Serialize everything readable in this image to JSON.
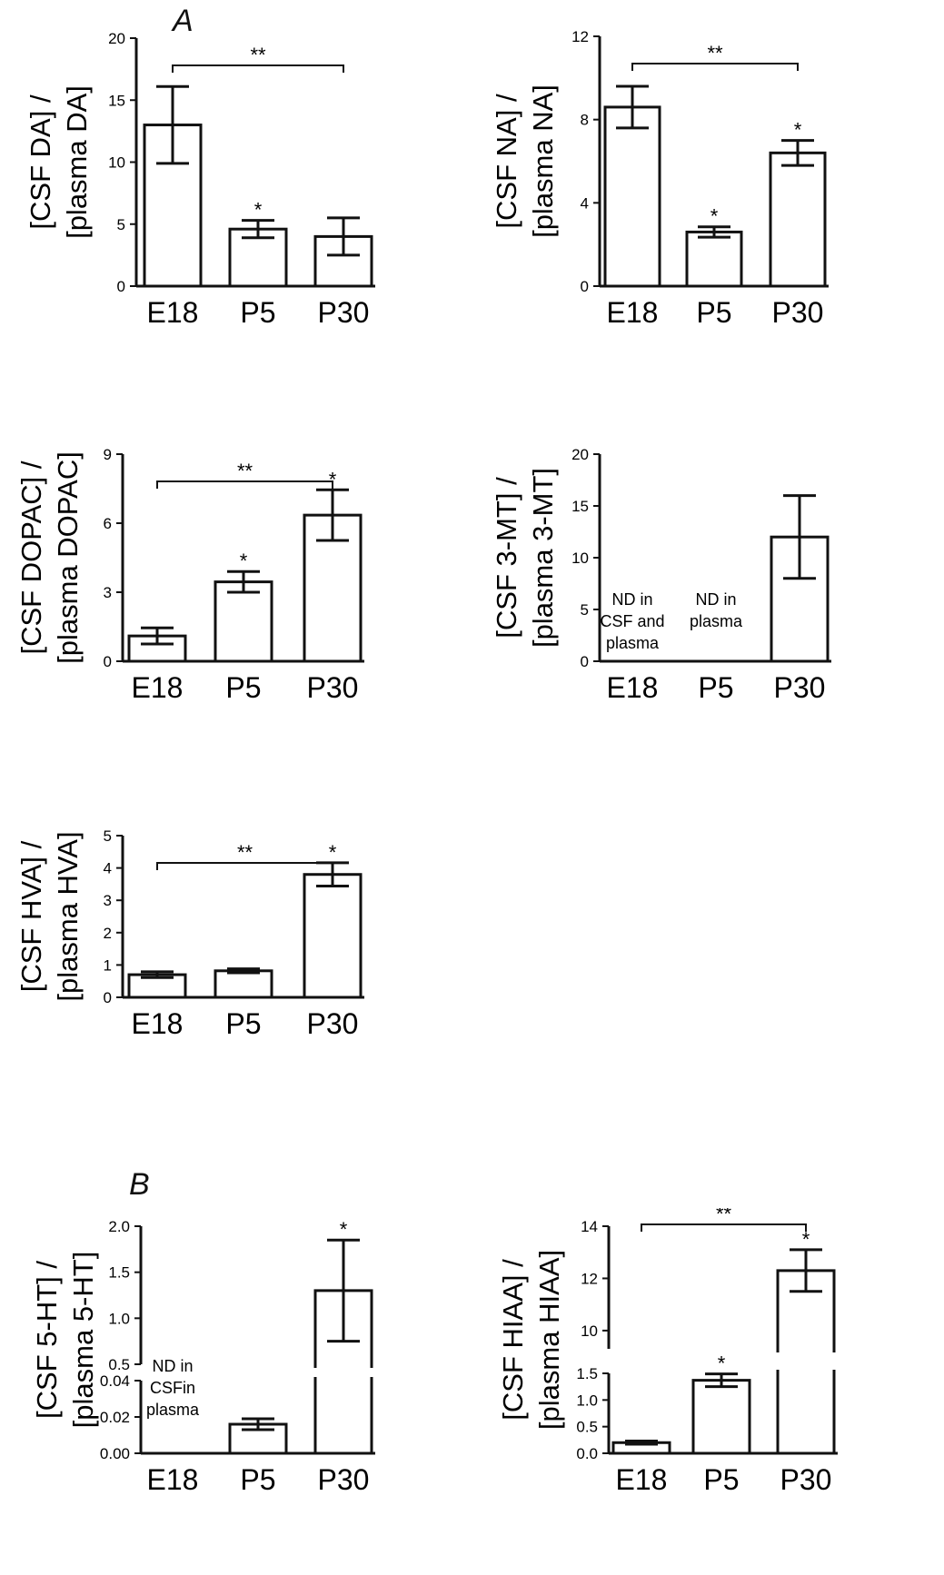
{
  "section_labels": {
    "A": "A",
    "B": "B"
  },
  "chart_data": [
    {
      "type": "bar",
      "ylabel_lines": [
        "[CSF DA] /",
        "[plasma DA]"
      ],
      "categories": [
        "E18",
        "P5",
        "P30"
      ],
      "values": [
        13,
        4.6,
        4.0
      ],
      "errors": [
        3.1,
        0.7,
        1.5
      ],
      "ylim": [
        0,
        20
      ],
      "yticks": [
        "0",
        "5",
        "10",
        "15",
        "20"
      ],
      "ytick_values": [
        0,
        5,
        10,
        15,
        20
      ],
      "sig_marks": [
        "",
        "*",
        ""
      ],
      "bracket": {
        "from": 0,
        "to": 2,
        "label": "**"
      }
    },
    {
      "type": "bar",
      "ylabel_lines": [
        "[CSF NA] /",
        "[plasma NA]"
      ],
      "categories": [
        "E18",
        "P5",
        "P30"
      ],
      "values": [
        8.6,
        2.6,
        6.4
      ],
      "errors": [
        1.0,
        0.25,
        0.6
      ],
      "ylim": [
        0,
        12
      ],
      "yticks": [
        "0",
        "4",
        "8",
        "12"
      ],
      "ytick_values": [
        0,
        4,
        8,
        12
      ],
      "sig_marks": [
        "",
        "*",
        "*"
      ],
      "bracket": {
        "from": 0,
        "to": 2,
        "label": "**"
      }
    },
    {
      "type": "bar",
      "ylabel_lines": [
        "[CSF DOPAC] /",
        "[plasma DOPAC]"
      ],
      "categories": [
        "E18",
        "P5",
        "P30"
      ],
      "values": [
        1.1,
        3.45,
        6.35
      ],
      "errors": [
        0.35,
        0.45,
        1.1
      ],
      "ylim": [
        0,
        9
      ],
      "yticks": [
        "0",
        "3",
        "6",
        "9"
      ],
      "ytick_values": [
        0,
        3,
        6,
        9
      ],
      "sig_marks": [
        "",
        "*",
        "*"
      ],
      "bracket": {
        "from": 0,
        "to": 2,
        "label": "**"
      }
    },
    {
      "type": "bar",
      "ylabel_lines": [
        "[CSF 3-MT] /",
        "[plasma 3-MT]"
      ],
      "categories": [
        "E18",
        "P5",
        "P30"
      ],
      "values": [
        null,
        null,
        12
      ],
      "errors": [
        null,
        null,
        4
      ],
      "ylim": [
        0,
        20
      ],
      "yticks": [
        "0",
        "5",
        "10",
        "15",
        "20"
      ],
      "ytick_values": [
        0,
        5,
        10,
        15,
        20
      ],
      "sig_marks": [
        "",
        "",
        ""
      ],
      "nd_notes": [
        [
          "ND in",
          "CSF and",
          "plasma"
        ],
        [
          "ND in",
          "plasma"
        ],
        []
      ]
    },
    {
      "type": "bar",
      "ylabel_lines": [
        "[CSF HVA] /",
        "[plasma HVA]"
      ],
      "categories": [
        "E18",
        "P5",
        "P30"
      ],
      "values": [
        0.7,
        0.82,
        3.8
      ],
      "errors": [
        0.09,
        0.06,
        0.36
      ],
      "ylim": [
        0,
        5
      ],
      "yticks": [
        "0",
        "1",
        "2",
        "3",
        "4",
        "5"
      ],
      "ytick_values": [
        0,
        1,
        2,
        3,
        4,
        5
      ],
      "sig_marks": [
        "",
        "",
        "*"
      ],
      "bracket": {
        "from": 0,
        "to": 2,
        "label": "**"
      }
    },
    {
      "type": "bar",
      "broken_axis": true,
      "ylabel_lines": [
        "[CSF 5-HT] /",
        "[plasma 5-HT]"
      ],
      "categories": [
        "E18",
        "P5",
        "P30"
      ],
      "values": [
        null,
        0.016,
        1.3
      ],
      "errors": [
        null,
        0.003,
        0.55
      ],
      "lower": {
        "ylim": [
          0,
          0.04
        ],
        "yticks": [
          "0.00",
          "0.02",
          "0.04"
        ],
        "ytick_values": [
          0,
          0.02,
          0.04
        ]
      },
      "upper": {
        "ylim": [
          0.5,
          2.0
        ],
        "yticks": [
          "0.5",
          "1.0",
          "1.5",
          "2.0"
        ],
        "ytick_values": [
          0.5,
          1.0,
          1.5,
          2.0
        ]
      },
      "sig_marks": [
        "",
        "",
        "*"
      ],
      "nd_notes": [
        [
          "ND in",
          "CSFin",
          "plasma"
        ],
        [],
        []
      ]
    },
    {
      "type": "bar",
      "broken_axis": true,
      "ylabel_lines": [
        "[CSF HIAA] /",
        "[plasma HIAA]"
      ],
      "categories": [
        "E18",
        "P5",
        "P30"
      ],
      "values": [
        0.2,
        1.37,
        12.3
      ],
      "errors": [
        0.03,
        0.12,
        0.8
      ],
      "lower": {
        "ylim": [
          0,
          1.5
        ],
        "yticks": [
          "0.0",
          "0.5",
          "1.0",
          "1.5"
        ],
        "ytick_values": [
          0,
          0.5,
          1.0,
          1.5
        ]
      },
      "upper": {
        "ylim": [
          9.3,
          14
        ],
        "yticks": [
          "10",
          "12",
          "14"
        ],
        "ytick_values": [
          10,
          12,
          14
        ]
      },
      "sig_marks": [
        "",
        "*",
        "*"
      ],
      "bracket": {
        "from": 0,
        "to": 2,
        "label": "**"
      }
    }
  ]
}
